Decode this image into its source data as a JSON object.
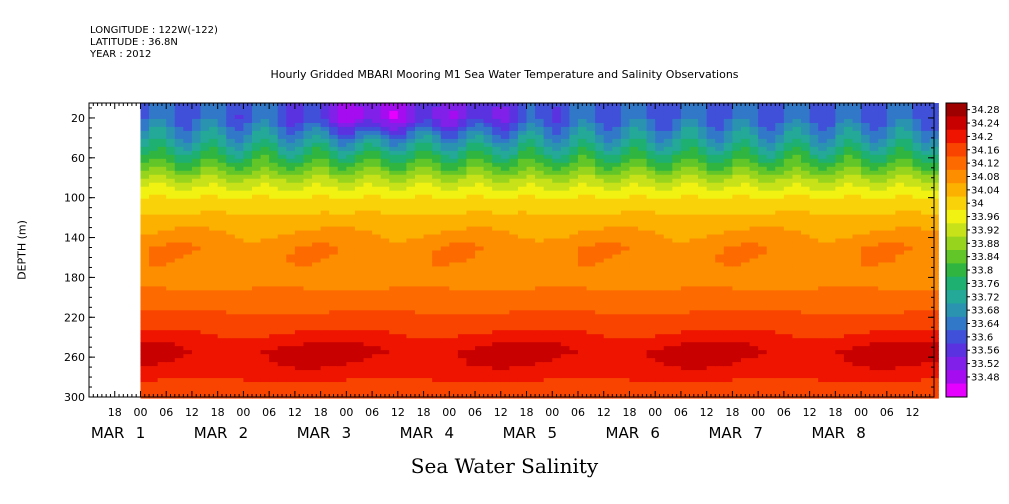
{
  "header": {
    "longitude": "LONGITUDE : 122W(-122)",
    "latitude": "LATITUDE : 36.8N",
    "year": "YEAR : 2012"
  },
  "footer_label": "Sea Water Salinity",
  "chart_data": {
    "type": "heatmap",
    "title": "Hourly Gridded MBARI Mooring M1 Sea Water Temperature and Salinity Observations",
    "ylabel": "DEPTH (m)",
    "xlabel": "",
    "ylim": [
      300,
      5
    ],
    "y_ticks": [
      20,
      60,
      100,
      140,
      180,
      220,
      260,
      300
    ],
    "x_hour_ticks": [
      "18",
      "00",
      "06",
      "12",
      "18",
      "00",
      "06",
      "12",
      "18",
      "00",
      "06",
      "12",
      "18",
      "00",
      "06",
      "12",
      "18",
      "00",
      "06",
      "12",
      "18",
      "00",
      "06",
      "12",
      "18",
      "00",
      "06",
      "12",
      "18",
      "00",
      "06",
      "12"
    ],
    "x_day_labels": [
      {
        "month": "MAR",
        "day": "1"
      },
      {
        "month": "MAR",
        "day": "2"
      },
      {
        "month": "MAR",
        "day": "3"
      },
      {
        "month": "MAR",
        "day": "4"
      },
      {
        "month": "MAR",
        "day": "5"
      },
      {
        "month": "MAR",
        "day": "6"
      },
      {
        "month": "MAR",
        "day": "7"
      },
      {
        "month": "MAR",
        "day": "8"
      }
    ],
    "x_start": "29 Feb 2012 12:00",
    "x_end": "8 Mar 2012 17:00",
    "data_start": "1 Mar 2012 00:00",
    "colorbar": {
      "levels": [
        33.48,
        33.52,
        33.56,
        33.6,
        33.64,
        33.68,
        33.72,
        33.76,
        33.8,
        33.84,
        33.88,
        33.92,
        33.96,
        34,
        34.04,
        34.08,
        34.12,
        34.16,
        34.2,
        34.24,
        34.28
      ],
      "labels": [
        "34.28",
        "34.24",
        "34.2",
        "34.16",
        "34.12",
        "34.08",
        "34.04",
        "34",
        "33.96",
        "33.92",
        "33.88",
        "33.84",
        "33.8",
        "33.76",
        "33.72",
        "33.68",
        "33.64",
        "33.6",
        "33.56",
        "33.52",
        "33.48"
      ],
      "colors": [
        "#e600ff",
        "#a60cf0",
        "#8020e8",
        "#5a32e0",
        "#4050d8",
        "#3278c8",
        "#2a94b0",
        "#24a898",
        "#1eb070",
        "#30b640",
        "#62c628",
        "#96d41e",
        "#c8e21a",
        "#f2f212",
        "#fad20a",
        "#fcb000",
        "#fd8e00",
        "#fd6a00",
        "#f94400",
        "#ee1400",
        "#c80000",
        "#9e0000"
      ],
      "value_range": [
        33.44,
        34.32
      ]
    },
    "profile": [
      {
        "depth": 5,
        "salinity": 33.64
      },
      {
        "depth": 20,
        "salinity": 33.64
      },
      {
        "depth": 45,
        "salinity": 33.73
      },
      {
        "depth": 65,
        "salinity": 33.83
      },
      {
        "depth": 85,
        "salinity": 33.94
      },
      {
        "depth": 100,
        "salinity": 34.0
      },
      {
        "depth": 120,
        "salinity": 34.05
      },
      {
        "depth": 150,
        "salinity": 34.11
      },
      {
        "depth": 180,
        "salinity": 34.1
      },
      {
        "depth": 210,
        "salinity": 34.15
      },
      {
        "depth": 235,
        "salinity": 34.2
      },
      {
        "depth": 255,
        "salinity": 34.25
      },
      {
        "depth": 275,
        "salinity": 34.22
      },
      {
        "depth": 300,
        "salinity": 34.16
      }
    ],
    "fresh_anomaly_peaks": [
      {
        "time": "3 Mar 2012 04:00",
        "depth": 15,
        "salinity": 33.5
      },
      {
        "time": "4 Mar 2012 03:00",
        "depth": 15,
        "salinity": 33.58
      },
      {
        "time": "4 Mar 2012 09:00",
        "depth": 20,
        "salinity": 33.62
      }
    ]
  }
}
